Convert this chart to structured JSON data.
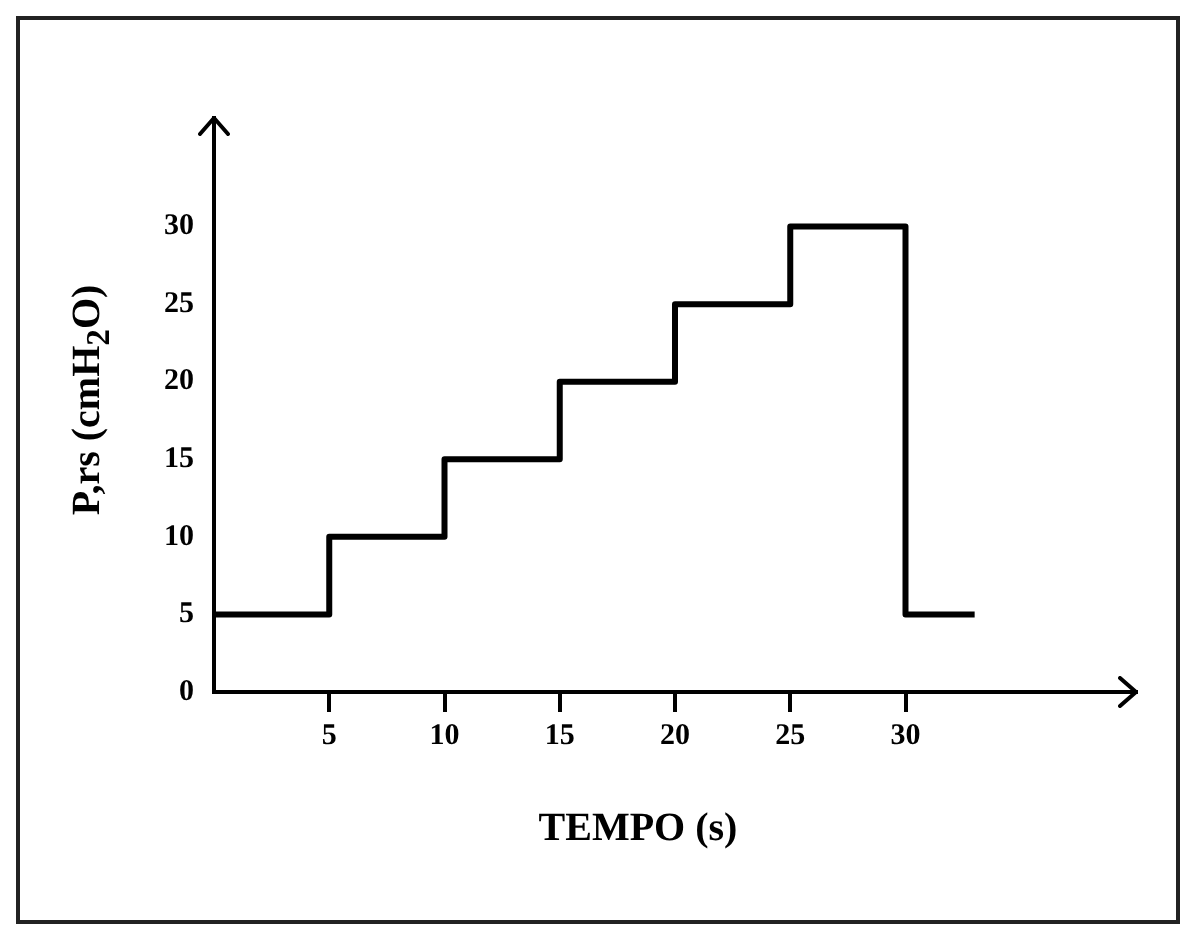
{
  "chart_data": {
    "type": "step",
    "xlabel": "TEMPO (s)",
    "ylabel": "P,rs (cmH$_{2}$O)",
    "x": [
      0,
      5,
      10,
      15,
      20,
      25,
      30,
      33
    ],
    "series": [
      {
        "color": "#000000",
        "values": [
          5,
          10,
          15,
          20,
          25,
          30,
          5,
          5
        ]
      }
    ],
    "xlim": [
      0,
      40
    ],
    "xticks": [
      5,
      10,
      15,
      20,
      25,
      30
    ],
    "ylim": [
      0,
      37
    ],
    "yticks": [
      0,
      5,
      10,
      15,
      20,
      25,
      30
    ],
    "grid": false,
    "legend": false,
    "marker": "none",
    "line_style": "solid"
  }
}
